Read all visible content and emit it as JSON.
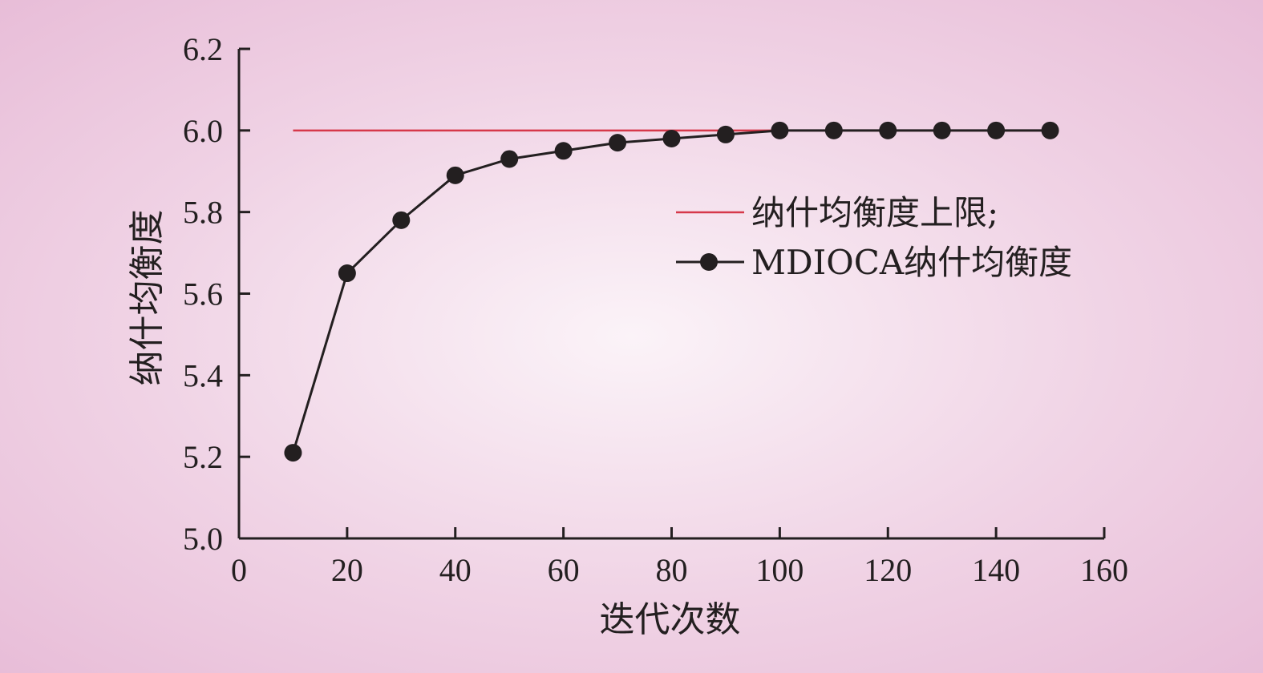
{
  "chart_data": {
    "type": "line",
    "xlabel": "迭代次数",
    "ylabel": "纳什均衡度",
    "xlim": [
      0,
      160
    ],
    "ylim": [
      5.0,
      6.2
    ],
    "x_ticks": [
      "0",
      "20",
      "40",
      "60",
      "80",
      "100",
      "120",
      "140",
      "160"
    ],
    "y_ticks": [
      "5.0",
      "5.2",
      "5.4",
      "5.6",
      "5.8",
      "6.0",
      "6.2"
    ],
    "legend_position": "right",
    "series": [
      {
        "name": "纳什均衡度上限;",
        "color": "#d6384a",
        "marker": "none",
        "x": [
          10,
          150
        ],
        "values": [
          6.0,
          6.0
        ]
      },
      {
        "name": "MDIOCA纳什均衡度",
        "color": "#231f20",
        "marker": "circle",
        "x": [
          10,
          20,
          30,
          40,
          50,
          60,
          70,
          80,
          90,
          100,
          110,
          120,
          130,
          140,
          150
        ],
        "values": [
          5.21,
          5.65,
          5.78,
          5.89,
          5.93,
          5.95,
          5.97,
          5.98,
          5.99,
          6.0,
          6.0,
          6.0,
          6.0,
          6.0,
          6.0
        ]
      }
    ]
  }
}
